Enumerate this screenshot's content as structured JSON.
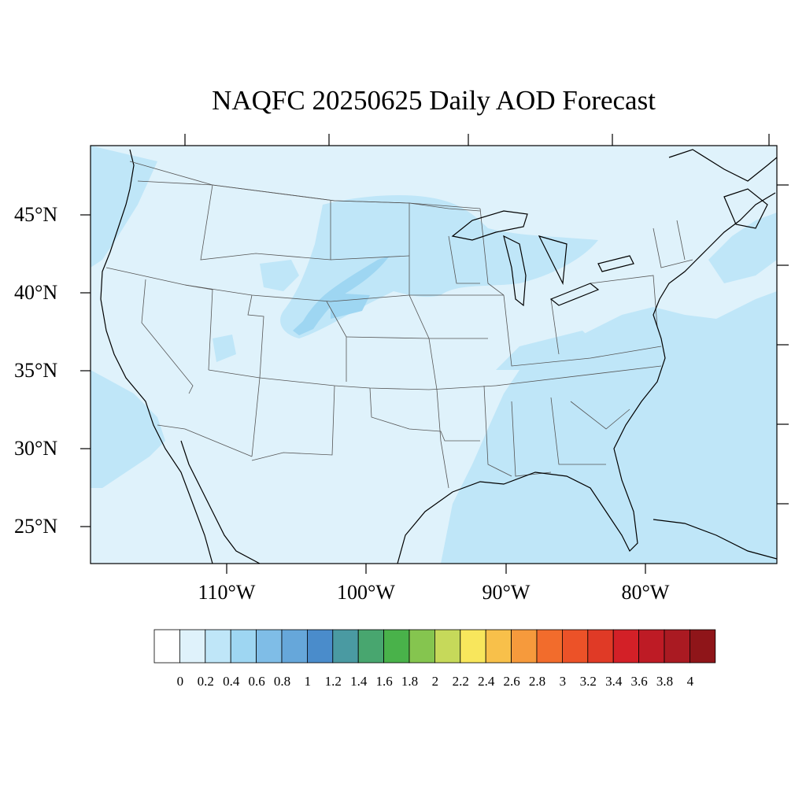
{
  "title": "NAQFC 20250625 Daily AOD Forecast",
  "lat_labels": [
    "45°N",
    "40°N",
    "35°N",
    "30°N",
    "25°N"
  ],
  "lon_labels": [
    "110°W",
    "100°W",
    "90°W",
    "80°W"
  ],
  "colorbar": {
    "labels": [
      "0",
      "0.2",
      "0.4",
      "0.6",
      "0.8",
      "1",
      "1.2",
      "1.4",
      "1.6",
      "1.8",
      "2",
      "2.2",
      "2.4",
      "2.6",
      "2.8",
      "3",
      "3.2",
      "3.4",
      "3.6",
      "3.8",
      "4"
    ],
    "colors": [
      "#ffffff",
      "#dff2fb",
      "#bfe6f8",
      "#9ed6f2",
      "#7fbde7",
      "#66a7da",
      "#4a8ccb",
      "#4a9aa2",
      "#48a66f",
      "#49b24a",
      "#85c54f",
      "#c6d95a",
      "#f8e65c",
      "#f8c04a",
      "#f69a3c",
      "#f26c2c",
      "#ec5228",
      "#e03a26",
      "#d32027",
      "#be1b25",
      "#aa1a22",
      "#8f1519"
    ]
  },
  "map": {
    "background_color": "#dff2fb",
    "enhanced_color": "#bfe6f8",
    "peak_color": "#9ed6f2",
    "line_color": "#555555"
  }
}
